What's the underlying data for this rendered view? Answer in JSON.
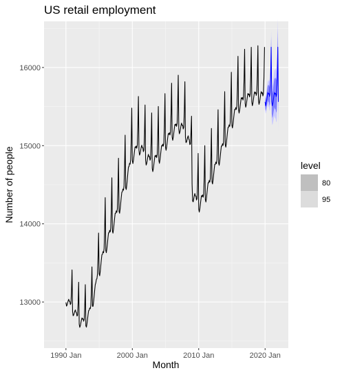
{
  "chart_data": {
    "type": "line",
    "title": "US retail employment",
    "xlabel": "Month",
    "ylabel": "Number of people",
    "x_ticks": [
      {
        "label": "1990 Jan",
        "value": 1990
      },
      {
        "label": "2000 Jan",
        "value": 2000
      },
      {
        "label": "2010 Jan",
        "value": 2010
      },
      {
        "label": "2020 Jan",
        "value": 2020
      }
    ],
    "y_ticks": [
      13000,
      14000,
      15000,
      16000
    ],
    "xlim": [
      1986.7,
      2023.5
    ],
    "ylim": [
      12410,
      16590
    ],
    "grid": true,
    "legend": {
      "title": "level",
      "position": "right",
      "entries": [
        {
          "label": "80",
          "color": "#bfbfbf"
        },
        {
          "label": "95",
          "color": "#dcdcdc"
        }
      ]
    },
    "colors": {
      "panel": "#ebebeb",
      "grid_major": "#ffffff",
      "line": "#000000",
      "forecast": "#0000ff",
      "pi80": "#8080ff",
      "pi95": "#c9c9ff"
    },
    "trend": [
      {
        "x": 1990.0,
        "y": 13100
      },
      {
        "x": 1991.0,
        "y": 12980
      },
      {
        "x": 1992.0,
        "y": 12820
      },
      {
        "x": 1993.0,
        "y": 12800
      },
      {
        "x": 1994.0,
        "y": 13050
      },
      {
        "x": 1995.0,
        "y": 13500
      },
      {
        "x": 1996.0,
        "y": 13800
      },
      {
        "x": 1997.0,
        "y": 14050
      },
      {
        "x": 1998.0,
        "y": 14300
      },
      {
        "x": 1999.0,
        "y": 14600
      },
      {
        "x": 2000.0,
        "y": 14950
      },
      {
        "x": 2001.0,
        "y": 15080
      },
      {
        "x": 2002.0,
        "y": 14950
      },
      {
        "x": 2003.0,
        "y": 14850
      },
      {
        "x": 2004.0,
        "y": 14950
      },
      {
        "x": 2005.0,
        "y": 15120
      },
      {
        "x": 2006.0,
        "y": 15250
      },
      {
        "x": 2007.0,
        "y": 15350
      },
      {
        "x": 2008.0,
        "y": 15250
      },
      {
        "x": 2008.8,
        "y": 15050
      },
      {
        "x": 2009.1,
        "y": 14450
      },
      {
        "x": 2010.0,
        "y": 14330
      },
      {
        "x": 2011.0,
        "y": 14450
      },
      {
        "x": 2012.0,
        "y": 14680
      },
      {
        "x": 2013.0,
        "y": 14920
      },
      {
        "x": 2014.0,
        "y": 15150
      },
      {
        "x": 2015.0,
        "y": 15400
      },
      {
        "x": 2016.0,
        "y": 15600
      },
      {
        "x": 2017.0,
        "y": 15680
      },
      {
        "x": 2018.0,
        "y": 15700
      },
      {
        "x": 2019.0,
        "y": 15720
      },
      {
        "x": 2019.99,
        "y": 15700
      }
    ],
    "seasonal": [
      -140,
      -190,
      -160,
      -110,
      -60,
      -20,
      -40,
      -30,
      -70,
      -40,
      180,
      560
    ],
    "forecast": {
      "start": 2020.0,
      "end": 2022.0,
      "level": 15700,
      "pi80_halfwidth_start": 60,
      "pi80_halfwidth_end": 240,
      "pi95_halfwidth_start": 90,
      "pi95_halfwidth_end": 380
    }
  }
}
